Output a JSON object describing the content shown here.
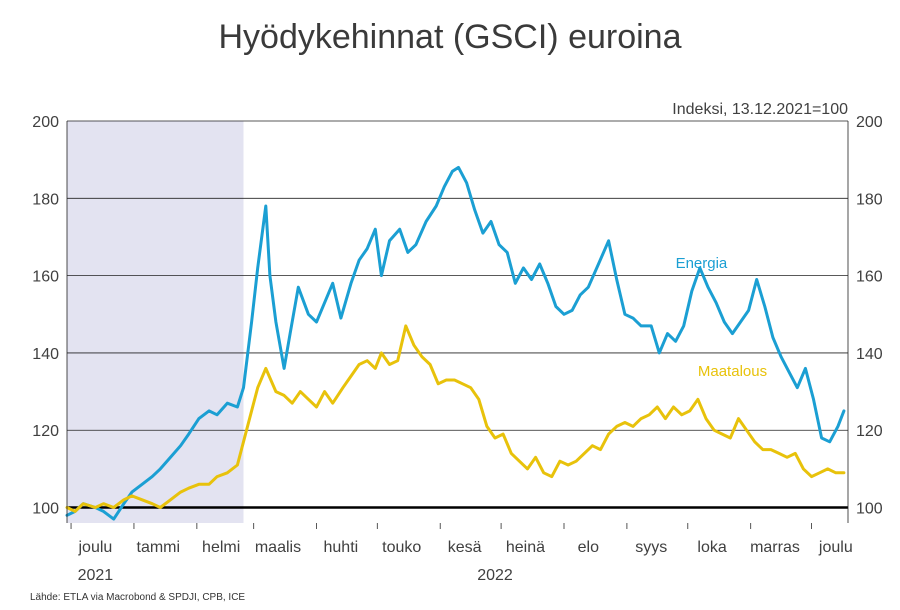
{
  "chart_data": {
    "type": "line",
    "title": "Hyödykehinnat (GSCI) euroina",
    "unit_note": "Indeksi, 13.12.2021=100",
    "source": "Lähde: ETLA via Macrobond & SPDJI, CPB, ICE",
    "ylim": [
      96,
      200
    ],
    "yticks": [
      100,
      120,
      140,
      160,
      180,
      200
    ],
    "grid": true,
    "x_range": [
      "2021-11-29",
      "2022-12-19"
    ],
    "shaded_range": [
      "2021-11-29",
      "2022-02-24"
    ],
    "month_labels": [
      {
        "label": "joulu",
        "date": "2021-12-13"
      },
      {
        "label": "tammi",
        "date": "2022-01-13"
      },
      {
        "label": "helmi",
        "date": "2022-02-13"
      },
      {
        "label": "maalis",
        "date": "2022-03-13"
      },
      {
        "label": "huhti",
        "date": "2022-04-13"
      },
      {
        "label": "touko",
        "date": "2022-05-13"
      },
      {
        "label": "kesä",
        "date": "2022-06-13"
      },
      {
        "label": "heinä",
        "date": "2022-07-13"
      },
      {
        "label": "elo",
        "date": "2022-08-13"
      },
      {
        "label": "syys",
        "date": "2022-09-13"
      },
      {
        "label": "loka",
        "date": "2022-10-13"
      },
      {
        "label": "marras",
        "date": "2022-11-13"
      },
      {
        "label": "joulu",
        "date": "2022-12-13"
      }
    ],
    "year_labels": [
      {
        "label": "2021",
        "date": "2021-12-13"
      },
      {
        "label": "2022",
        "date": "2022-06-28"
      }
    ],
    "series": [
      {
        "name": "Energia",
        "color": "#1b9fd3",
        "points": [
          [
            "2021-11-29",
            98
          ],
          [
            "2021-12-03",
            99
          ],
          [
            "2021-12-07",
            101
          ],
          [
            "2021-12-13",
            100
          ],
          [
            "2021-12-17",
            99
          ],
          [
            "2021-12-22",
            97
          ],
          [
            "2021-12-27",
            101
          ],
          [
            "2021-12-31",
            104
          ],
          [
            "2022-01-05",
            106
          ],
          [
            "2022-01-10",
            108
          ],
          [
            "2022-01-14",
            110
          ],
          [
            "2022-01-19",
            113
          ],
          [
            "2022-01-24",
            116
          ],
          [
            "2022-01-28",
            119
          ],
          [
            "2022-02-02",
            123
          ],
          [
            "2022-02-07",
            125
          ],
          [
            "2022-02-11",
            124
          ],
          [
            "2022-02-16",
            127
          ],
          [
            "2022-02-21",
            126
          ],
          [
            "2022-02-24",
            131
          ],
          [
            "2022-02-28",
            148
          ],
          [
            "2022-03-03",
            162
          ],
          [
            "2022-03-07",
            178
          ],
          [
            "2022-03-09",
            160
          ],
          [
            "2022-03-12",
            148
          ],
          [
            "2022-03-16",
            136
          ],
          [
            "2022-03-19",
            145
          ],
          [
            "2022-03-23",
            157
          ],
          [
            "2022-03-28",
            150
          ],
          [
            "2022-04-01",
            148
          ],
          [
            "2022-04-05",
            153
          ],
          [
            "2022-04-09",
            158
          ],
          [
            "2022-04-13",
            149
          ],
          [
            "2022-04-18",
            158
          ],
          [
            "2022-04-22",
            164
          ],
          [
            "2022-04-26",
            167
          ],
          [
            "2022-04-30",
            172
          ],
          [
            "2022-05-03",
            160
          ],
          [
            "2022-05-07",
            169
          ],
          [
            "2022-05-12",
            172
          ],
          [
            "2022-05-16",
            166
          ],
          [
            "2022-05-20",
            168
          ],
          [
            "2022-05-25",
            174
          ],
          [
            "2022-05-30",
            178
          ],
          [
            "2022-06-03",
            183
          ],
          [
            "2022-06-07",
            187
          ],
          [
            "2022-06-10",
            188
          ],
          [
            "2022-06-14",
            184
          ],
          [
            "2022-06-18",
            177
          ],
          [
            "2022-06-22",
            171
          ],
          [
            "2022-06-26",
            174
          ],
          [
            "2022-06-30",
            168
          ],
          [
            "2022-07-04",
            166
          ],
          [
            "2022-07-08",
            158
          ],
          [
            "2022-07-12",
            162
          ],
          [
            "2022-07-16",
            159
          ],
          [
            "2022-07-20",
            163
          ],
          [
            "2022-07-24",
            158
          ],
          [
            "2022-07-28",
            152
          ],
          [
            "2022-08-01",
            150
          ],
          [
            "2022-08-05",
            151
          ],
          [
            "2022-08-09",
            155
          ],
          [
            "2022-08-13",
            157
          ],
          [
            "2022-08-18",
            163
          ],
          [
            "2022-08-23",
            169
          ],
          [
            "2022-08-27",
            159
          ],
          [
            "2022-08-31",
            150
          ],
          [
            "2022-09-04",
            149
          ],
          [
            "2022-09-08",
            147
          ],
          [
            "2022-09-13",
            147
          ],
          [
            "2022-09-17",
            140
          ],
          [
            "2022-09-21",
            145
          ],
          [
            "2022-09-25",
            143
          ],
          [
            "2022-09-29",
            147
          ],
          [
            "2022-10-03",
            156
          ],
          [
            "2022-10-07",
            162
          ],
          [
            "2022-10-11",
            157
          ],
          [
            "2022-10-15",
            153
          ],
          [
            "2022-10-19",
            148
          ],
          [
            "2022-10-23",
            145
          ],
          [
            "2022-10-27",
            148
          ],
          [
            "2022-10-31",
            151
          ],
          [
            "2022-11-04",
            159
          ],
          [
            "2022-11-08",
            152
          ],
          [
            "2022-11-12",
            144
          ],
          [
            "2022-11-16",
            139
          ],
          [
            "2022-11-20",
            135
          ],
          [
            "2022-11-24",
            131
          ],
          [
            "2022-11-28",
            136
          ],
          [
            "2022-12-02",
            128
          ],
          [
            "2022-12-06",
            118
          ],
          [
            "2022-12-10",
            117
          ],
          [
            "2022-12-14",
            121
          ],
          [
            "2022-12-17",
            125
          ]
        ]
      },
      {
        "name": "Maatalous",
        "color": "#e8c20b",
        "points": [
          [
            "2021-11-29",
            100
          ],
          [
            "2021-12-03",
            99
          ],
          [
            "2021-12-07",
            101
          ],
          [
            "2021-12-13",
            100
          ],
          [
            "2021-12-17",
            101
          ],
          [
            "2021-12-22",
            100
          ],
          [
            "2021-12-27",
            102
          ],
          [
            "2021-12-31",
            103
          ],
          [
            "2022-01-05",
            102
          ],
          [
            "2022-01-10",
            101
          ],
          [
            "2022-01-14",
            100
          ],
          [
            "2022-01-19",
            102
          ],
          [
            "2022-01-24",
            104
          ],
          [
            "2022-01-28",
            105
          ],
          [
            "2022-02-02",
            106
          ],
          [
            "2022-02-07",
            106
          ],
          [
            "2022-02-11",
            108
          ],
          [
            "2022-02-16",
            109
          ],
          [
            "2022-02-21",
            111
          ],
          [
            "2022-02-24",
            117
          ],
          [
            "2022-02-28",
            125
          ],
          [
            "2022-03-03",
            131
          ],
          [
            "2022-03-07",
            136
          ],
          [
            "2022-03-12",
            130
          ],
          [
            "2022-03-16",
            129
          ],
          [
            "2022-03-20",
            127
          ],
          [
            "2022-03-24",
            130
          ],
          [
            "2022-03-28",
            128
          ],
          [
            "2022-04-01",
            126
          ],
          [
            "2022-04-05",
            130
          ],
          [
            "2022-04-09",
            127
          ],
          [
            "2022-04-14",
            131
          ],
          [
            "2022-04-18",
            134
          ],
          [
            "2022-04-22",
            137
          ],
          [
            "2022-04-26",
            138
          ],
          [
            "2022-04-30",
            136
          ],
          [
            "2022-05-03",
            140
          ],
          [
            "2022-05-07",
            137
          ],
          [
            "2022-05-11",
            138
          ],
          [
            "2022-05-15",
            147
          ],
          [
            "2022-05-19",
            142
          ],
          [
            "2022-05-23",
            139
          ],
          [
            "2022-05-27",
            137
          ],
          [
            "2022-05-31",
            132
          ],
          [
            "2022-06-04",
            133
          ],
          [
            "2022-06-08",
            133
          ],
          [
            "2022-06-12",
            132
          ],
          [
            "2022-06-16",
            131
          ],
          [
            "2022-06-20",
            128
          ],
          [
            "2022-06-24",
            121
          ],
          [
            "2022-06-28",
            118
          ],
          [
            "2022-07-02",
            119
          ],
          [
            "2022-07-06",
            114
          ],
          [
            "2022-07-10",
            112
          ],
          [
            "2022-07-14",
            110
          ],
          [
            "2022-07-18",
            113
          ],
          [
            "2022-07-22",
            109
          ],
          [
            "2022-07-26",
            108
          ],
          [
            "2022-07-30",
            112
          ],
          [
            "2022-08-03",
            111
          ],
          [
            "2022-08-07",
            112
          ],
          [
            "2022-08-11",
            114
          ],
          [
            "2022-08-15",
            116
          ],
          [
            "2022-08-19",
            115
          ],
          [
            "2022-08-23",
            119
          ],
          [
            "2022-08-27",
            121
          ],
          [
            "2022-08-31",
            122
          ],
          [
            "2022-09-04",
            121
          ],
          [
            "2022-09-08",
            123
          ],
          [
            "2022-09-12",
            124
          ],
          [
            "2022-09-16",
            126
          ],
          [
            "2022-09-20",
            123
          ],
          [
            "2022-09-24",
            126
          ],
          [
            "2022-09-28",
            124
          ],
          [
            "2022-10-02",
            125
          ],
          [
            "2022-10-06",
            128
          ],
          [
            "2022-10-10",
            123
          ],
          [
            "2022-10-14",
            120
          ],
          [
            "2022-10-18",
            119
          ],
          [
            "2022-10-22",
            118
          ],
          [
            "2022-10-26",
            123
          ],
          [
            "2022-10-30",
            120
          ],
          [
            "2022-11-03",
            117
          ],
          [
            "2022-11-07",
            115
          ],
          [
            "2022-11-11",
            115
          ],
          [
            "2022-11-15",
            114
          ],
          [
            "2022-11-19",
            113
          ],
          [
            "2022-11-23",
            114
          ],
          [
            "2022-11-27",
            110
          ],
          [
            "2022-12-01",
            108
          ],
          [
            "2022-12-05",
            109
          ],
          [
            "2022-12-09",
            110
          ],
          [
            "2022-12-13",
            109
          ],
          [
            "2022-12-17",
            109
          ]
        ]
      }
    ],
    "series_labels": [
      {
        "series": "Energia",
        "date": "2022-09-25",
        "value": 162
      },
      {
        "series": "Maatalous",
        "date": "2022-10-06",
        "value": 134
      }
    ],
    "colors": {
      "shade": "#e3e3f1",
      "grid": "#222222",
      "baseline": "#000000",
      "axis_text": "#404040"
    }
  }
}
